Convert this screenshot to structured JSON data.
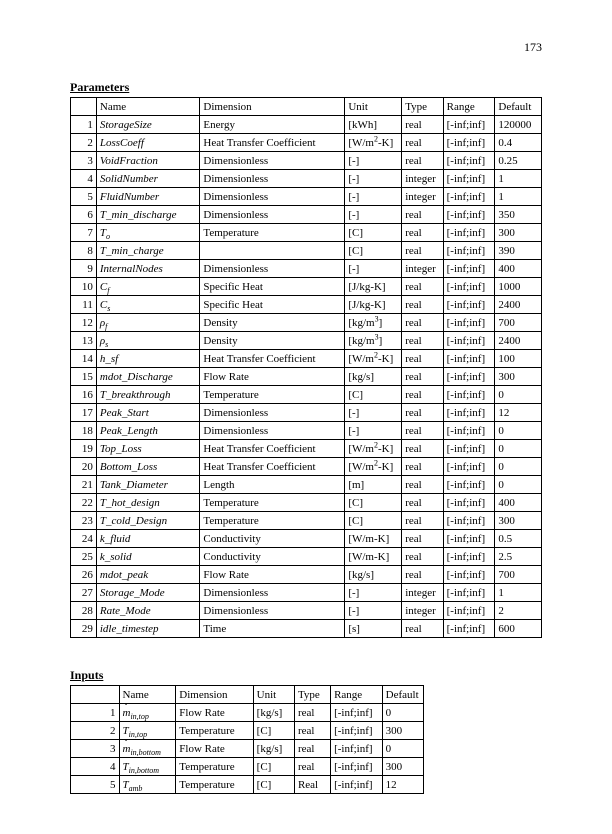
{
  "page_number": "173",
  "parameters_title": "Parameters",
  "inputs_title": "Inputs",
  "parameters_headers": {
    "blank": "",
    "name": "Name",
    "dimension": "Dimension",
    "unit": "Unit",
    "type": "Type",
    "range": "Range",
    "default": "Default"
  },
  "inputs_headers": {
    "blank": "",
    "name": "Name",
    "dimension": "Dimension",
    "unit": "Unit",
    "type": "Type",
    "range": "Range",
    "default": "Default"
  },
  "parameters": [
    {
      "n": "1",
      "name": "StorageSize",
      "dim": "Energy",
      "unit": "[kWh]",
      "type": "real",
      "range": "[-inf;inf]",
      "def": "120000"
    },
    {
      "n": "2",
      "name": "LossCoeff",
      "dim": "Heat Transfer Coefficient",
      "unit": "[W/m²-K]",
      "type": "real",
      "range": "[-inf;inf]",
      "def": "0.4"
    },
    {
      "n": "3",
      "name": "VoidFraction",
      "dim": "Dimensionless",
      "unit": "[-]",
      "type": "real",
      "range": "[-inf;inf]",
      "def": "0.25"
    },
    {
      "n": "4",
      "name": "SolidNumber",
      "dim": "Dimensionless",
      "unit": "[-]",
      "type": "integer",
      "range": "[-inf;inf]",
      "def": "1"
    },
    {
      "n": "5",
      "name": "FluidNumber",
      "dim": "Dimensionless",
      "unit": "[-]",
      "type": "integer",
      "range": "[-inf;inf]",
      "def": "1"
    },
    {
      "n": "6",
      "name": "T_min_discharge",
      "dim": "Dimensionless",
      "unit": "[-]",
      "type": "real",
      "range": "[-inf;inf]",
      "def": "350"
    },
    {
      "n": "7",
      "name": "Tₒ",
      "dim": "Temperature",
      "unit": "[C]",
      "type": "real",
      "range": "[-inf;inf]",
      "def": "300"
    },
    {
      "n": "8",
      "name": "T_min_charge",
      "dim": "",
      "unit": "[C]",
      "type": "real",
      "range": "[-inf;inf]",
      "def": "390"
    },
    {
      "n": "9",
      "name": "InternalNodes",
      "dim": "Dimensionless",
      "unit": "[-]",
      "type": "integer",
      "range": "[-inf;inf]",
      "def": "400"
    },
    {
      "n": "10",
      "name": "Cf",
      "dim": "Specific Heat",
      "unit": "[J/kg-K]",
      "type": "real",
      "range": "[-inf;inf]",
      "def": "1000"
    },
    {
      "n": "11",
      "name": "Cs",
      "dim": "Specific Heat",
      "unit": "[J/kg-K]",
      "type": "real",
      "range": "[-inf;inf]",
      "def": "2400"
    },
    {
      "n": "12",
      "name": "ρf",
      "dim": "Density",
      "unit": "[kg/m³]",
      "type": "real",
      "range": "[-inf;inf]",
      "def": "700"
    },
    {
      "n": "13",
      "name": "ρs",
      "dim": "Density",
      "unit": "[kg/m³]",
      "type": "real",
      "range": "[-inf;inf]",
      "def": "2400"
    },
    {
      "n": "14",
      "name": "h_sf",
      "dim": "Heat Transfer Coefficient",
      "unit": "[W/m²-K]",
      "type": "real",
      "range": "[-inf;inf]",
      "def": "100"
    },
    {
      "n": "15",
      "name": "mdot_Discharge",
      "dim": "Flow Rate",
      "unit": "[kg/s]",
      "type": "real",
      "range": "[-inf;inf]",
      "def": "300"
    },
    {
      "n": "16",
      "name": "T_breakthrough",
      "dim": "Temperature",
      "unit": "[C]",
      "type": "real",
      "range": "[-inf;inf]",
      "def": "0"
    },
    {
      "n": "17",
      "name": "Peak_Start",
      "dim": "Dimensionless",
      "unit": "[-]",
      "type": "real",
      "range": "[-inf;inf]",
      "def": "12"
    },
    {
      "n": "18",
      "name": "Peak_Length",
      "dim": "Dimensionless",
      "unit": "[-]",
      "type": "real",
      "range": "[-inf;inf]",
      "def": "0"
    },
    {
      "n": "19",
      "name": "Top_Loss",
      "dim": "Heat Transfer Coefficient",
      "unit": "[W/m²-K]",
      "type": "real",
      "range": "[-inf;inf]",
      "def": "0"
    },
    {
      "n": "20",
      "name": "Bottom_Loss",
      "dim": "Heat Transfer Coefficient",
      "unit": "[W/m²-K]",
      "type": "real",
      "range": "[-inf;inf]",
      "def": "0"
    },
    {
      "n": "21",
      "name": "Tank_Diameter",
      "dim": "Length",
      "unit": "[m]",
      "type": "real",
      "range": "[-inf;inf]",
      "def": "0"
    },
    {
      "n": "22",
      "name": "T_hot_design",
      "dim": "Temperature",
      "unit": "[C]",
      "type": "real",
      "range": "[-inf;inf]",
      "def": "400"
    },
    {
      "n": "23",
      "name": "T_cold_Design",
      "dim": "Temperature",
      "unit": "[C]",
      "type": "real",
      "range": "[-inf;inf]",
      "def": "300"
    },
    {
      "n": "24",
      "name": "k_fluid",
      "dim": "Conductivity",
      "unit": "[W/m-K]",
      "type": "real",
      "range": "[-inf;inf]",
      "def": "0.5"
    },
    {
      "n": "25",
      "name": "k_solid",
      "dim": "Conductivity",
      "unit": "[W/m-K]",
      "type": "real",
      "range": "[-inf;inf]",
      "def": "2.5"
    },
    {
      "n": "26",
      "name": "mdot_peak",
      "dim": "Flow Rate",
      "unit": "[kg/s]",
      "type": "real",
      "range": "[-inf;inf]",
      "def": "700"
    },
    {
      "n": "27",
      "name": "Storage_Mode",
      "dim": "Dimensionless",
      "unit": "[-]",
      "type": "integer",
      "range": "[-inf;inf]",
      "def": "1"
    },
    {
      "n": "28",
      "name": "Rate_Mode",
      "dim": "Dimensionless",
      "unit": "[-]",
      "type": "integer",
      "range": "[-inf;inf]",
      "def": "2"
    },
    {
      "n": "29",
      "name": "idle_timestep",
      "dim": "Time",
      "unit": "[s]",
      "type": "real",
      "range": "[-inf;inf]",
      "def": "600"
    }
  ],
  "inputs": [
    {
      "n": "1",
      "name": "ṁin,top",
      "dim": "Flow Rate",
      "unit": "[kg/s]",
      "type": "real",
      "range": "[-inf;inf]",
      "def": "0"
    },
    {
      "n": "2",
      "name": "Tin,top",
      "dim": "Temperature",
      "unit": "[C]",
      "type": "real",
      "range": "[-inf;inf]",
      "def": "300"
    },
    {
      "n": "3",
      "name": "ṁin,bottom",
      "dim": "Flow Rate",
      "unit": "[kg/s]",
      "type": "real",
      "range": "[-inf;inf]",
      "def": "0"
    },
    {
      "n": "4",
      "name": "Tin,bottom",
      "dim": "Temperature",
      "unit": "[C]",
      "type": "real",
      "range": "[-inf;inf]",
      "def": "300"
    },
    {
      "n": "5",
      "name": "Tamb",
      "dim": "Temperature",
      "unit": "[C]",
      "type": "Real",
      "range": "[-inf;inf]",
      "def": "12"
    }
  ],
  "col_widths": {
    "parameters": {
      "num": "18px",
      "name": "100px",
      "dim": "140px",
      "unit": "55px",
      "type": "40px",
      "range": "50px",
      "def": "45px"
    },
    "inputs": {
      "num": "40px",
      "name": "50px",
      "dim": "70px",
      "unit": "40px",
      "type": "35px",
      "range": "50px",
      "def": "40px"
    }
  }
}
